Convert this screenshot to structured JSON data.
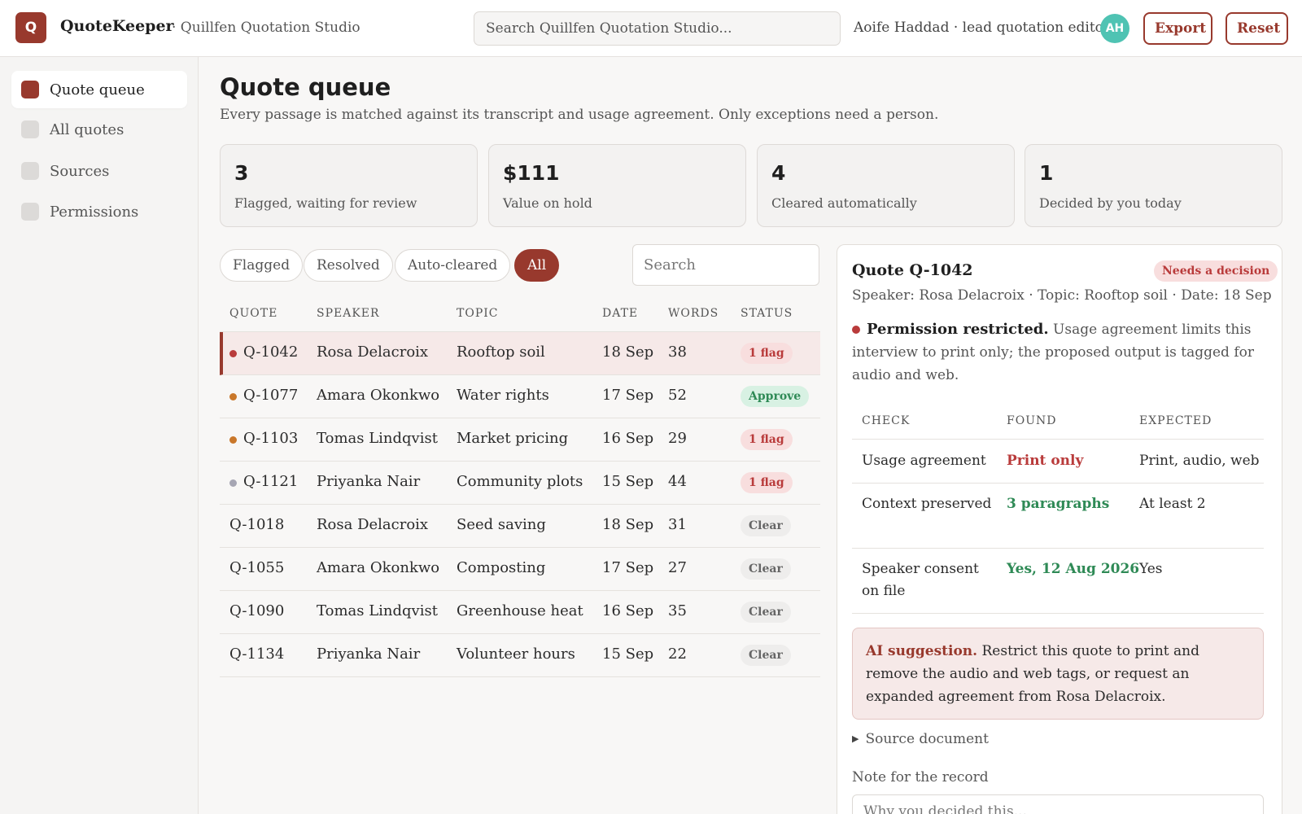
{
  "app": {
    "logo_letter": "Q",
    "name": "QuoteKeeper",
    "workspace": "· Quillfen Quotation Studio",
    "search_placeholder": "Search Quillfen Quotation Studio...",
    "user": "Aoife Haddad · lead quotation editor",
    "avatar_initials": "AH",
    "export_label": "Export",
    "reset_label": "Reset",
    "accent_color": "#98392d"
  },
  "sidebar": {
    "items": [
      {
        "label": "Quote queue",
        "active": true
      },
      {
        "label": "All quotes",
        "active": false
      },
      {
        "label": "Sources",
        "active": false
      },
      {
        "label": "Permissions",
        "active": false
      }
    ]
  },
  "main": {
    "title": "Quote queue",
    "description": "Every passage is matched against its transcript and usage agreement. Only exceptions need a person.",
    "stats": [
      {
        "value": "3",
        "label": "Flagged, waiting for review"
      },
      {
        "value": "$111",
        "label": "Value on hold"
      },
      {
        "value": "4",
        "label": "Cleared automatically"
      },
      {
        "value": "1",
        "label": "Decided by you today"
      }
    ],
    "filters": [
      {
        "label": "Flagged",
        "active": false
      },
      {
        "label": "Resolved",
        "active": false
      },
      {
        "label": "Auto-cleared",
        "active": false
      },
      {
        "label": "All",
        "active": true
      }
    ],
    "search_placeholder": "Search",
    "columns": [
      "QUOTE",
      "SPEAKER",
      "TOPIC",
      "DATE",
      "WORDS",
      "STATUS"
    ],
    "rows": [
      {
        "id": "Q-1042",
        "speaker": "Rosa Delacroix",
        "topic": "Rooftop soil",
        "date": "18 Sep",
        "words": "38",
        "status": "1 flag",
        "status_type": "flag",
        "dot": "#b93b3b",
        "selected": true
      },
      {
        "id": "Q-1077",
        "speaker": "Amara Okonkwo",
        "topic": "Water rights",
        "date": "17 Sep",
        "words": "52",
        "status": "Approve",
        "status_type": "approve",
        "dot": "#c9772a",
        "selected": false
      },
      {
        "id": "Q-1103",
        "speaker": "Tomas Lindqvist",
        "topic": "Market pricing",
        "date": "16 Sep",
        "words": "29",
        "status": "1 flag",
        "status_type": "flag",
        "dot": "#c9772a",
        "selected": false
      },
      {
        "id": "Q-1121",
        "speaker": "Priyanka Nair",
        "topic": "Community plots",
        "date": "15 Sep",
        "words": "44",
        "status": "1 flag",
        "status_type": "flag",
        "dot": "#a6a6b3",
        "selected": false
      },
      {
        "id": "Q-1018",
        "speaker": "Rosa Delacroix",
        "topic": "Seed saving",
        "date": "18 Sep",
        "words": "31",
        "status": "Clear",
        "status_type": "clear",
        "dot": "",
        "selected": false
      },
      {
        "id": "Q-1055",
        "speaker": "Amara Okonkwo",
        "topic": "Composting",
        "date": "17 Sep",
        "words": "27",
        "status": "Clear",
        "status_type": "clear",
        "dot": "",
        "selected": false
      },
      {
        "id": "Q-1090",
        "speaker": "Tomas Lindqvist",
        "topic": "Greenhouse heat",
        "date": "16 Sep",
        "words": "35",
        "status": "Clear",
        "status_type": "clear",
        "dot": "",
        "selected": false
      },
      {
        "id": "Q-1134",
        "speaker": "Priyanka Nair",
        "topic": "Volunteer hours",
        "date": "15 Sep",
        "words": "22",
        "status": "Clear",
        "status_type": "clear",
        "dot": "",
        "selected": false
      }
    ]
  },
  "detail": {
    "title": "Quote Q-1042",
    "badge": "Needs a decision",
    "meta": "Speaker: Rosa Delacroix · Topic: Rooftop soil · Date: 18 Sep",
    "permission_title": "Permission restricted.",
    "permission_text": "Usage agreement limits this interview to print only; the proposed output is tagged for audio and web.",
    "check_columns": [
      "CHECK",
      "FOUND",
      "EXPECTED"
    ],
    "checks": [
      {
        "check": "Usage agreement",
        "found": "Print only",
        "found_ok": false,
        "expected": "Print, audio, web"
      },
      {
        "check": "Context preserved",
        "found": "3 paragraphs",
        "found_ok": true,
        "expected": "At least 2"
      },
      {
        "check": "Speaker consent on file",
        "found": "Yes, 12 Aug 2026",
        "found_ok": true,
        "expected": "Yes"
      }
    ],
    "ai_title": "AI suggestion.",
    "ai_text": "Restrict this quote to print and remove the audio and web tags, or request an expanded agreement from Rosa Delacroix.",
    "source_label": "Source document",
    "note_label": "Note for the record",
    "note_placeholder": "Why you decided this..."
  }
}
